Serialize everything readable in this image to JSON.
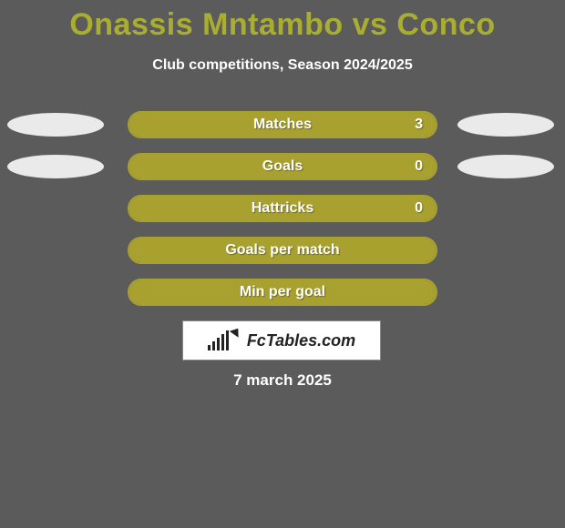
{
  "background_color": "#5b5b5b",
  "title": {
    "text": "Onassis Mntambo vs Conco",
    "color": "#aaae30",
    "fontsize": 34,
    "weight": 800
  },
  "subtitle": {
    "text": "Club competitions, Season 2024/2025",
    "color": "#ffffff",
    "fontsize": 16
  },
  "bar_style": {
    "fill_color": "#a9a12f",
    "border_color": "#a9a12f",
    "track_color": "transparent",
    "radius": 15,
    "label_color": "#ffffff",
    "label_fontsize": 16
  },
  "player_ellipse": {
    "color": "#eaeaea",
    "width": 106,
    "height": 26
  },
  "rows": [
    {
      "label": "Matches",
      "value": "3",
      "fill_pct": 100,
      "show_left_player": true,
      "show_right_player": true
    },
    {
      "label": "Goals",
      "value": "0",
      "fill_pct": 100,
      "show_left_player": true,
      "show_right_player": true
    },
    {
      "label": "Hattricks",
      "value": "0",
      "fill_pct": 100,
      "show_left_player": false,
      "show_right_player": false
    },
    {
      "label": "Goals per match",
      "value": "",
      "fill_pct": 100,
      "show_left_player": false,
      "show_right_player": false
    },
    {
      "label": "Min per goal",
      "value": "",
      "fill_pct": 100,
      "show_left_player": false,
      "show_right_player": false
    }
  ],
  "logo": {
    "text": "FcTables.com",
    "bg": "#ffffff",
    "text_color": "#222222"
  },
  "date": {
    "text": "7 march 2025",
    "color": "#ffffff",
    "fontsize": 17
  }
}
